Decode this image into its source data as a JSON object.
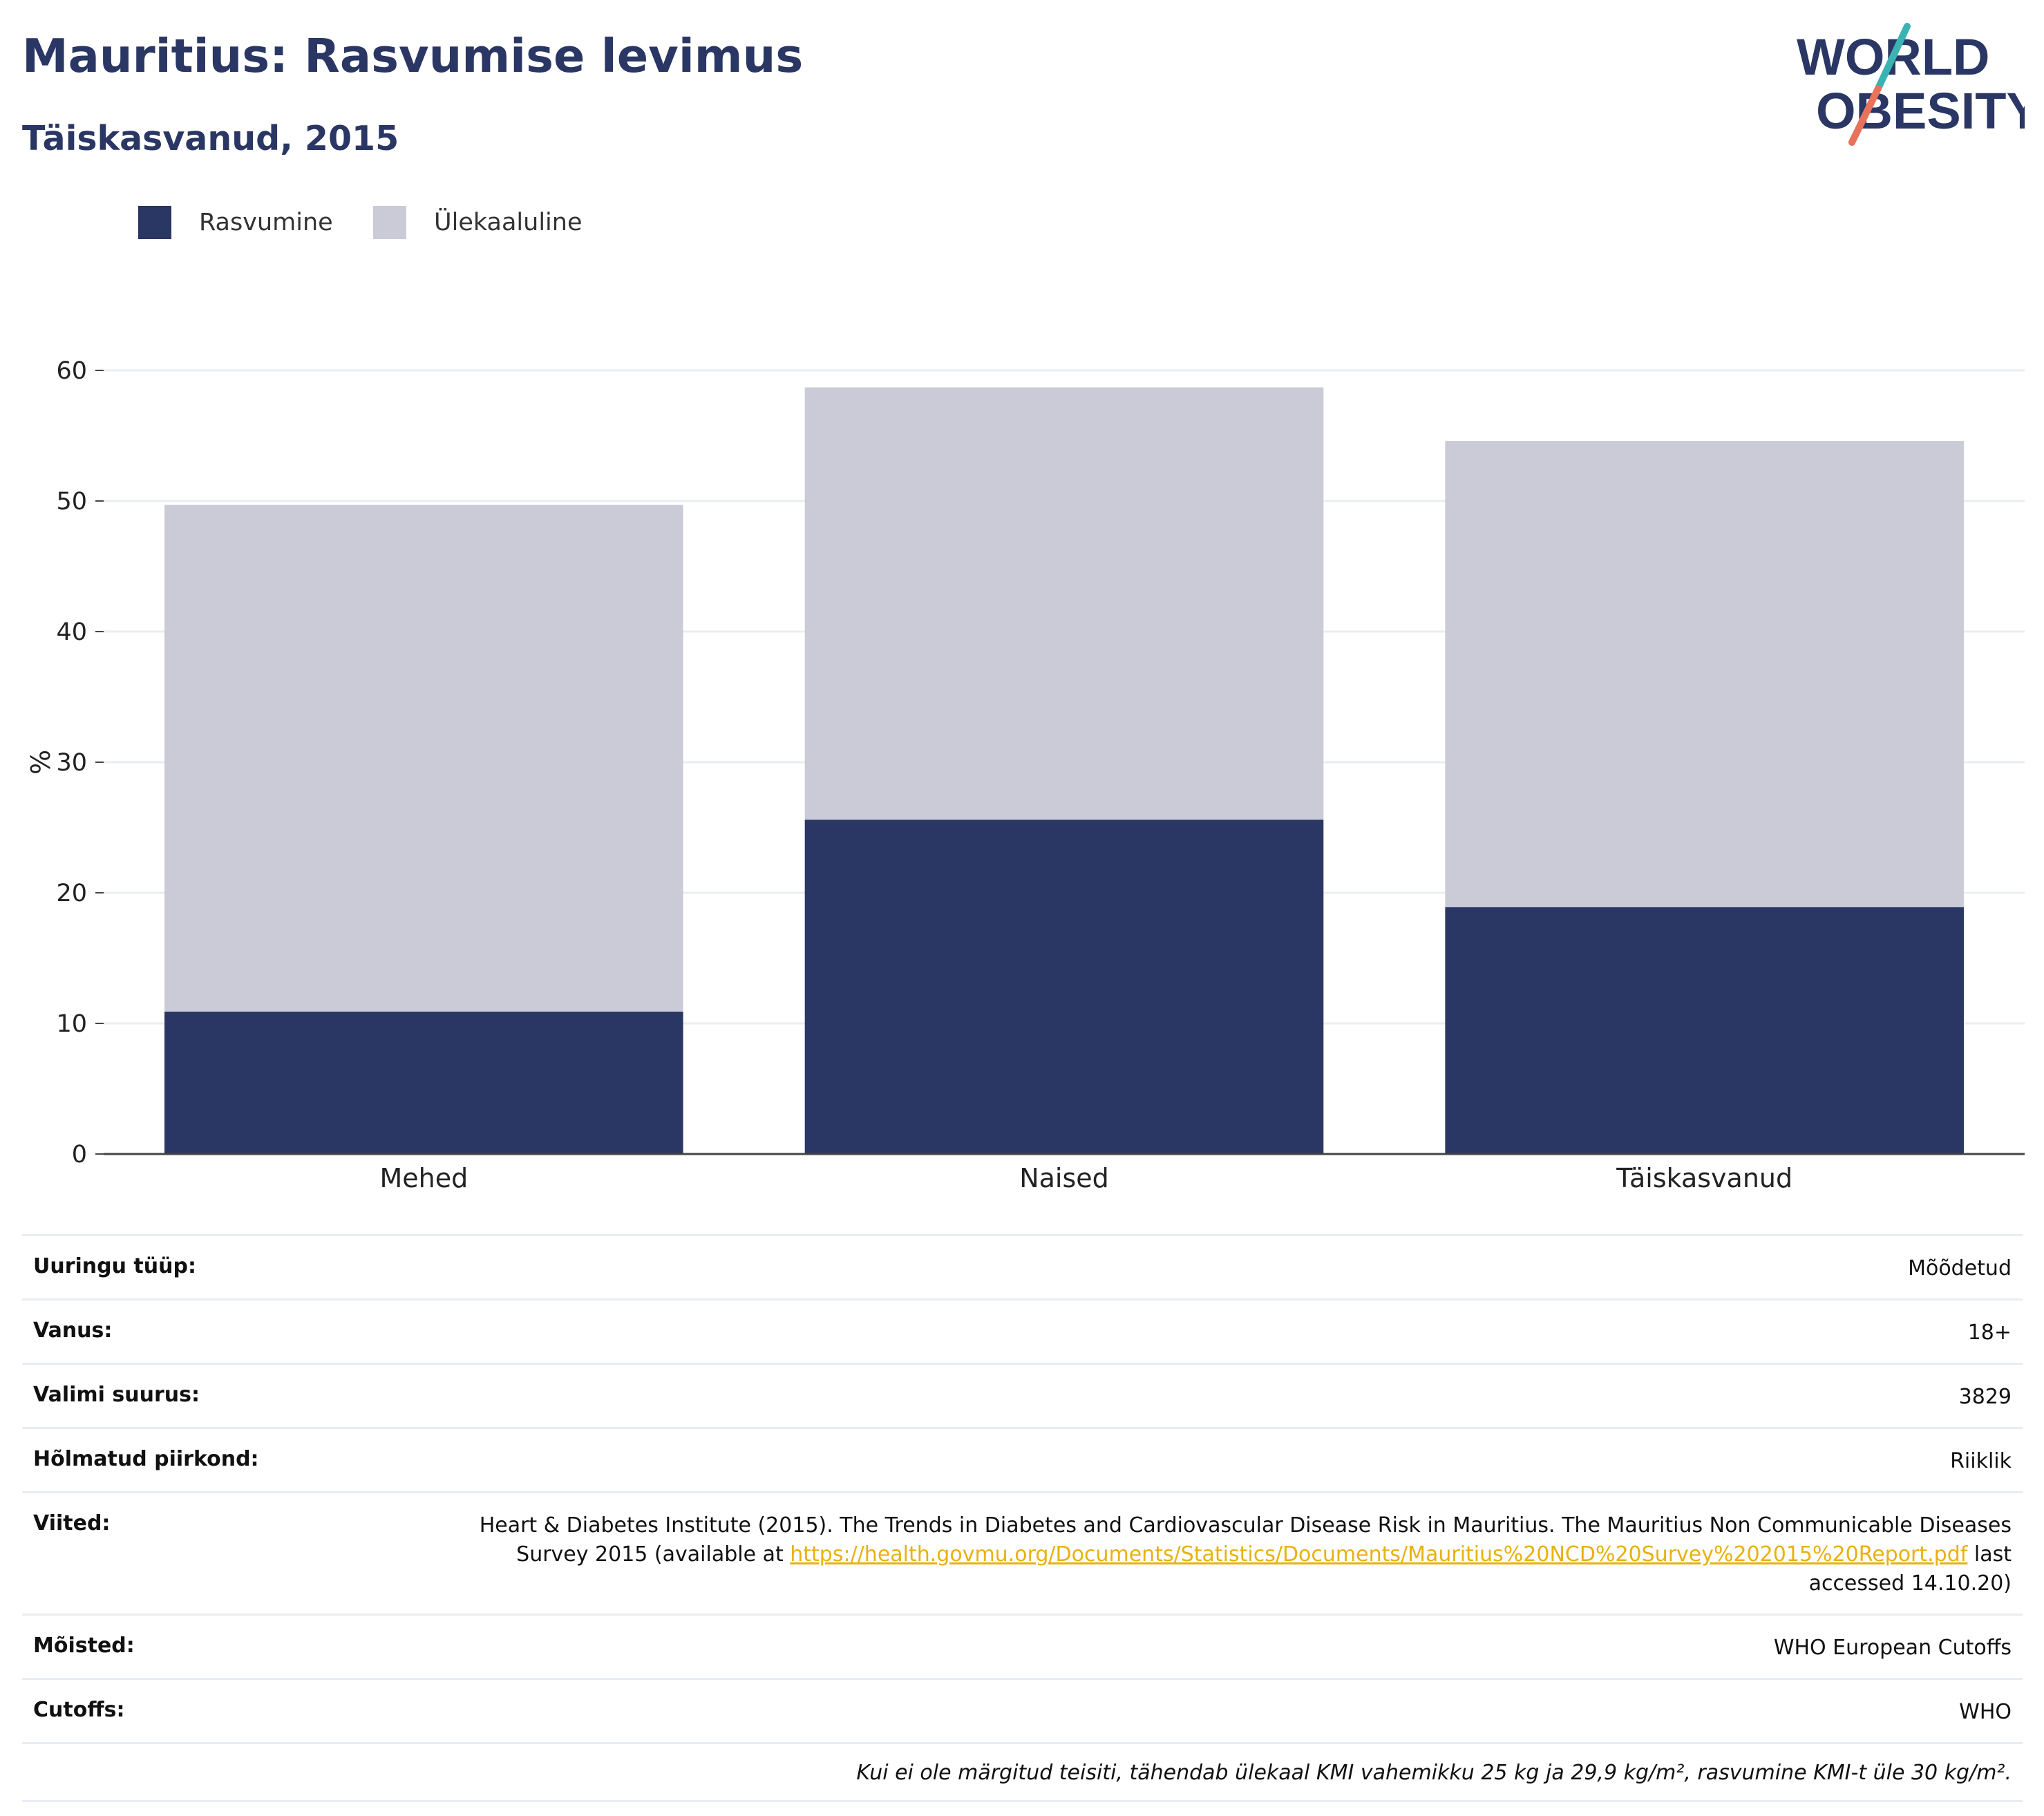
{
  "header": {
    "title": "Mauritius: Rasvumise levimus",
    "subtitle": "Täiskasvanud, 2015"
  },
  "logo": {
    "line1": "WORLD",
    "line2": "OBESITY",
    "colors": {
      "navy": "#2a3663",
      "teal": "#3bb3b3",
      "coral": "#e8725c"
    }
  },
  "legend": [
    {
      "label": "Rasvumine",
      "color": "#2a3663"
    },
    {
      "label": "Ülekaaluline",
      "color": "#cacbd6"
    }
  ],
  "chart_data": {
    "type": "bar",
    "stacked": true,
    "categories": [
      "Mehed",
      "Naised",
      "Täiskasvanud"
    ],
    "series": [
      {
        "name": "Rasvumine",
        "values": [
          10.9,
          25.6,
          18.9
        ],
        "color": "#2a3663"
      },
      {
        "name": "Ülekaaluline",
        "values": [
          38.8,
          33.1,
          35.7
        ],
        "color": "#cacbd6"
      }
    ],
    "ylabel": "%",
    "ylim": [
      0,
      60
    ],
    "yticks": [
      0,
      10,
      20,
      30,
      40,
      50,
      60
    ],
    "grid": true,
    "legend_position": "top-left"
  },
  "info": {
    "rows": [
      {
        "label": "Uuringu tüüp:",
        "value": "Mõõdetud"
      },
      {
        "label": "Vanus:",
        "value": "18+"
      },
      {
        "label": "Valimi suurus:",
        "value": "3829"
      },
      {
        "label": "Hõlmatud piirkond:",
        "value": "Riiklik"
      }
    ],
    "reference": {
      "label": "Viited:",
      "text_before": "Heart & Diabetes Institute (2015). The Trends in Diabetes and Cardiovascular Disease Risk in Mauritius. The Mauritius Non Communicable Diseases Survey 2015 (available at ",
      "link": "https://health.govmu.org/Documents/Statistics/Documents/Mauritius%20NCD%20Survey%202015%20Report.pdf",
      "text_after": " last accessed 14.10.20)"
    },
    "rows2": [
      {
        "label": "Mõisted:",
        "value": "WHO European Cutoffs"
      },
      {
        "label": "Cutoffs:",
        "value": "WHO"
      }
    ],
    "note": "Kui ei ole märgitud teisiti, tähendab ülekaal KMI vahemikku 25 kg ja 29,9 kg/m², rasvumine KMI-t üle 30 kg/m²."
  }
}
